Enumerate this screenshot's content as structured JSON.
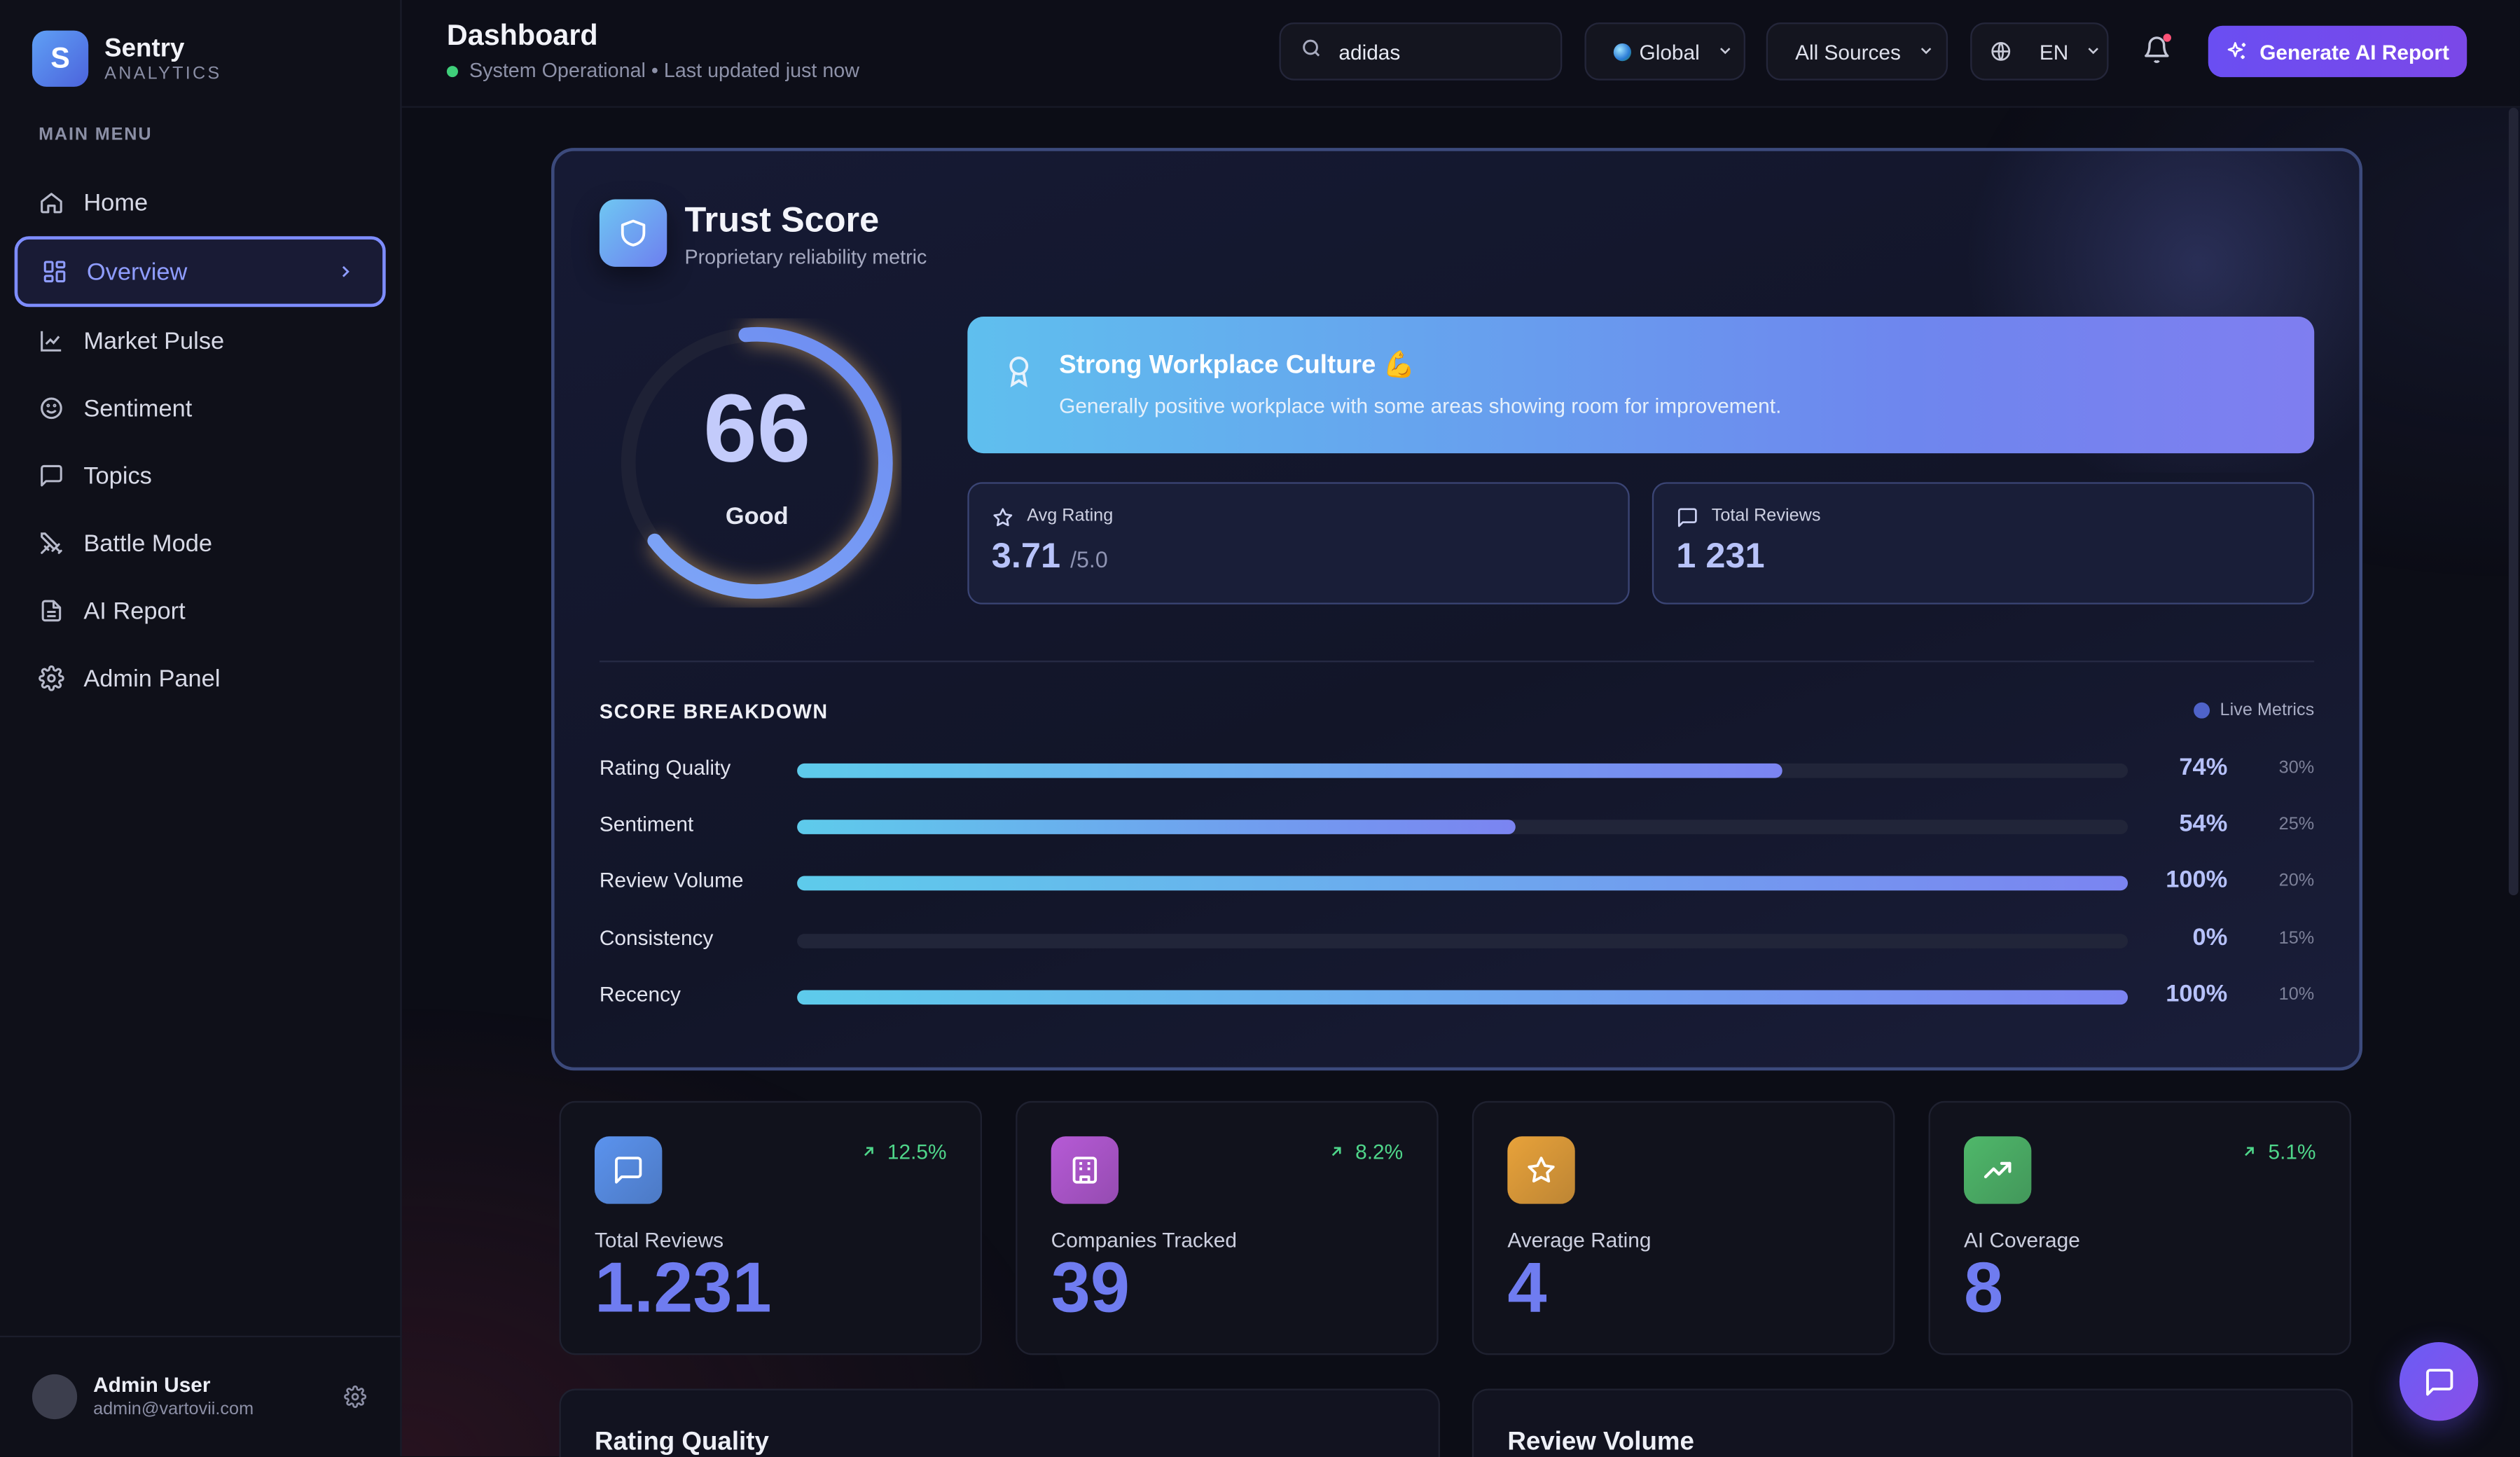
{
  "brand": {
    "initial": "S",
    "name": "Sentry",
    "sub": "ANALYTICS"
  },
  "menu": {
    "title": "MAIN MENU",
    "items": [
      {
        "label": "Home",
        "icon": "home-icon"
      },
      {
        "label": "Overview",
        "icon": "grid-icon",
        "active": true
      },
      {
        "label": "Market Pulse",
        "icon": "line-chart-icon"
      },
      {
        "label": "Sentiment",
        "icon": "smile-icon"
      },
      {
        "label": "Topics",
        "icon": "message-square-icon"
      },
      {
        "label": "Battle Mode",
        "icon": "swords-icon"
      },
      {
        "label": "AI Report",
        "icon": "file-text-icon"
      },
      {
        "label": "Admin Panel",
        "icon": "gear-icon"
      }
    ]
  },
  "user": {
    "name": "Admin User",
    "email": "admin@vartovii.com"
  },
  "header": {
    "title": "Dashboard",
    "status": "System Operational • Last updated just now",
    "search_value": "adidas",
    "region": "Global",
    "sources": "All Sources",
    "language": "EN",
    "generate_label": "Generate AI Report"
  },
  "trust": {
    "title": "Trust Score",
    "subtitle": "Proprietary reliability metric",
    "score": "66",
    "score_value": 66,
    "score_label": "Good",
    "banner_title": "Strong Workplace Culture 💪",
    "banner_text": "Generally positive workplace with some areas showing room for improvement.",
    "avg_label": "Avg Rating",
    "avg_value": "3.71",
    "avg_suffix": "/5.0",
    "total_label": "Total Reviews",
    "total_value": "1 231",
    "breakdown_title": "SCORE BREAKDOWN",
    "live_label": "Live Metrics",
    "breakdown": [
      {
        "label": "Rating Quality",
        "pct": "74%",
        "value": 74,
        "weight": "30%"
      },
      {
        "label": "Sentiment",
        "pct": "54%",
        "value": 54,
        "weight": "25%"
      },
      {
        "label": "Review Volume",
        "pct": "100%",
        "value": 100,
        "weight": "20%"
      },
      {
        "label": "Consistency",
        "pct": "0%",
        "value": 0,
        "weight": "15%"
      },
      {
        "label": "Recency",
        "pct": "100%",
        "value": 100,
        "weight": "10%"
      }
    ]
  },
  "stats": [
    {
      "label": "Total Reviews",
      "value": "1.231",
      "trend": "12.5%",
      "icon": "message-icon",
      "color": "#5b93ee"
    },
    {
      "label": "Companies Tracked",
      "value": "39",
      "trend": "8.2%",
      "icon": "building-icon",
      "color": "#b65ad6"
    },
    {
      "label": "Average Rating",
      "value": "4",
      "trend": "",
      "icon": "star-icon",
      "color": "#e8a23a"
    },
    {
      "label": "AI Coverage",
      "value": "8",
      "trend": "5.1%",
      "icon": "trending-up-icon",
      "color": "#4fb86a"
    }
  ],
  "lower": {
    "left_title": "Rating Quality",
    "right_title": "Review Volume"
  }
}
